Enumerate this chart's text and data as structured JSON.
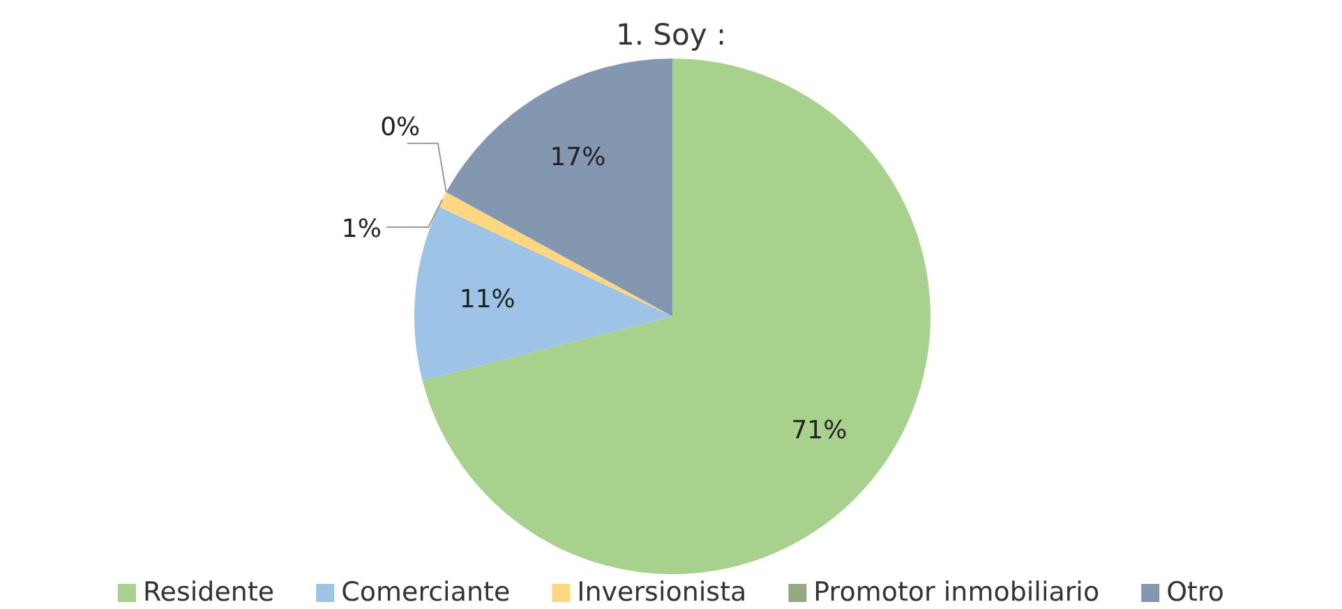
{
  "chart_data": {
    "type": "pie",
    "title": "1. Soy :",
    "categories": [
      "Residente",
      "Comerciante",
      "Inversionista",
      "Promotor inmobiliario",
      "Otro"
    ],
    "values": [
      71,
      11,
      1,
      0,
      17
    ],
    "colors": [
      "#a9d18e",
      "#9dc3e6",
      "#ffd780",
      "#93a883",
      "#8497b0"
    ],
    "value_labels": [
      "71%",
      "11%",
      "1%",
      "0%",
      "17%"
    ],
    "legend": "bottom"
  }
}
